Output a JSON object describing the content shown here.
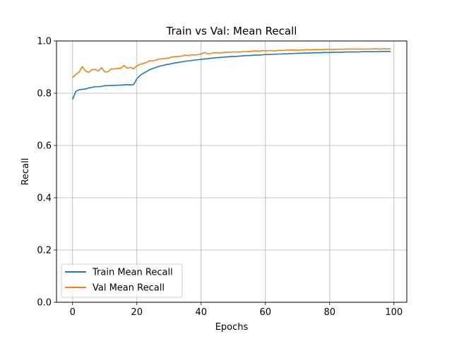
{
  "chart_data": {
    "type": "line",
    "title": "Train vs Val: Mean Recall",
    "xlabel": "Epochs",
    "ylabel": "Recall",
    "xlim": [
      -5,
      104
    ],
    "ylim": [
      0.0,
      1.0
    ],
    "xticks": [
      0,
      20,
      40,
      60,
      80,
      100
    ],
    "xtick_labels": [
      "0",
      "20",
      "40",
      "60",
      "80",
      "100"
    ],
    "yticks": [
      0.0,
      0.2,
      0.4,
      0.6,
      0.8,
      1.0
    ],
    "ytick_labels": [
      "0.0",
      "0.2",
      "0.4",
      "0.6",
      "0.8",
      "1.0"
    ],
    "grid": true,
    "legend_position": "lower-left",
    "series": [
      {
        "name": "Train Mean Recall",
        "color": "#1f77b4",
        "x": [
          0,
          1,
          2,
          3,
          4,
          5,
          6,
          7,
          8,
          9,
          10,
          11,
          12,
          13,
          14,
          15,
          16,
          17,
          18,
          19,
          20,
          21,
          22,
          23,
          24,
          25,
          26,
          27,
          28,
          29,
          30,
          31,
          32,
          33,
          34,
          35,
          36,
          37,
          38,
          39,
          40,
          41,
          42,
          43,
          44,
          45,
          46,
          47,
          48,
          49,
          50,
          51,
          52,
          53,
          54,
          55,
          56,
          57,
          58,
          59,
          60,
          61,
          62,
          63,
          64,
          65,
          66,
          67,
          68,
          69,
          70,
          71,
          72,
          73,
          74,
          75,
          76,
          77,
          78,
          79,
          80,
          81,
          82,
          83,
          84,
          85,
          86,
          87,
          88,
          89,
          90,
          91,
          92,
          93,
          94,
          95,
          96,
          97,
          98,
          99
        ],
        "values": [
          0.776,
          0.807,
          0.813,
          0.815,
          0.816,
          0.82,
          0.822,
          0.825,
          0.825,
          0.826,
          0.829,
          0.829,
          0.83,
          0.83,
          0.831,
          0.831,
          0.832,
          0.833,
          0.832,
          0.833,
          0.855,
          0.868,
          0.876,
          0.883,
          0.89,
          0.895,
          0.899,
          0.903,
          0.906,
          0.909,
          0.911,
          0.914,
          0.916,
          0.918,
          0.92,
          0.922,
          0.924,
          0.925,
          0.927,
          0.928,
          0.93,
          0.931,
          0.932,
          0.934,
          0.935,
          0.936,
          0.937,
          0.938,
          0.939,
          0.94,
          0.941,
          0.941,
          0.942,
          0.943,
          0.944,
          0.944,
          0.945,
          0.946,
          0.946,
          0.947,
          0.948,
          0.948,
          0.949,
          0.949,
          0.95,
          0.95,
          0.951,
          0.951,
          0.952,
          0.952,
          0.953,
          0.953,
          0.954,
          0.954,
          0.954,
          0.955,
          0.955,
          0.955,
          0.956,
          0.956,
          0.956,
          0.957,
          0.957,
          0.957,
          0.957,
          0.958,
          0.958,
          0.958,
          0.958,
          0.958,
          0.959,
          0.959,
          0.959,
          0.959,
          0.959,
          0.959,
          0.96,
          0.96,
          0.96,
          0.96
        ]
      },
      {
        "name": "Val Mean Recall",
        "color": "#ff7f0e",
        "x": [
          0,
          1,
          2,
          3,
          4,
          5,
          6,
          7,
          8,
          9,
          10,
          11,
          12,
          13,
          14,
          15,
          16,
          17,
          18,
          19,
          20,
          21,
          22,
          23,
          24,
          25,
          26,
          27,
          28,
          29,
          30,
          31,
          32,
          33,
          34,
          35,
          36,
          37,
          38,
          39,
          40,
          41,
          42,
          43,
          44,
          45,
          46,
          47,
          48,
          49,
          50,
          51,
          52,
          53,
          54,
          55,
          56,
          57,
          58,
          59,
          60,
          61,
          62,
          63,
          64,
          65,
          66,
          67,
          68,
          69,
          70,
          71,
          72,
          73,
          74,
          75,
          76,
          77,
          78,
          79,
          80,
          81,
          82,
          83,
          84,
          85,
          86,
          87,
          88,
          89,
          90,
          91,
          92,
          93,
          94,
          95,
          96,
          97,
          98,
          99
        ],
        "values": [
          0.86,
          0.872,
          0.88,
          0.902,
          0.885,
          0.88,
          0.89,
          0.891,
          0.885,
          0.898,
          0.882,
          0.882,
          0.893,
          0.893,
          0.895,
          0.896,
          0.906,
          0.896,
          0.899,
          0.894,
          0.905,
          0.91,
          0.914,
          0.918,
          0.924,
          0.924,
          0.927,
          0.931,
          0.932,
          0.933,
          0.935,
          0.939,
          0.94,
          0.941,
          0.942,
          0.946,
          0.944,
          0.947,
          0.946,
          0.948,
          0.95,
          0.956,
          0.951,
          0.952,
          0.955,
          0.955,
          0.954,
          0.956,
          0.957,
          0.957,
          0.958,
          0.958,
          0.958,
          0.959,
          0.959,
          0.96,
          0.961,
          0.962,
          0.961,
          0.963,
          0.962,
          0.963,
          0.963,
          0.962,
          0.964,
          0.964,
          0.964,
          0.965,
          0.966,
          0.965,
          0.965,
          0.965,
          0.966,
          0.967,
          0.966,
          0.967,
          0.967,
          0.967,
          0.967,
          0.968,
          0.968,
          0.967,
          0.968,
          0.968,
          0.968,
          0.969,
          0.969,
          0.969,
          0.969,
          0.969,
          0.969,
          0.969,
          0.969,
          0.969,
          0.97,
          0.969,
          0.969,
          0.97,
          0.969,
          0.97
        ]
      }
    ]
  }
}
